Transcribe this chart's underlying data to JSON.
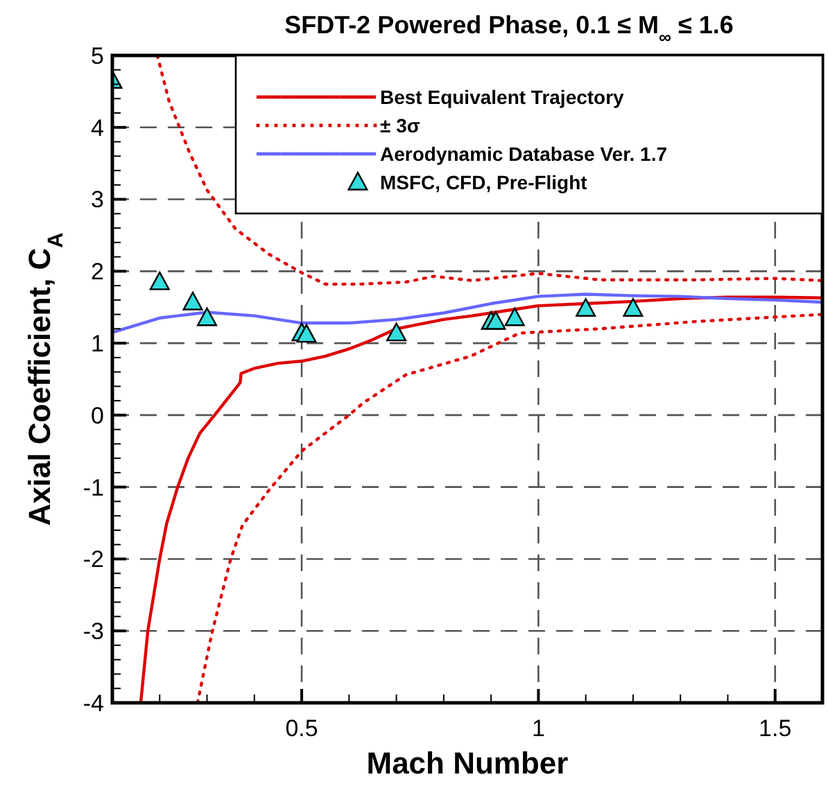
{
  "chart_data": {
    "type": "line",
    "title": "SFDT-2 Powered Phase, 0.1 ≤ M$_{∞}$ ≤ 1.6",
    "xlabel": "Mach Number",
    "ylabel": "Axial Coefficient, C$_{A}$",
    "xlim": [
      0.1,
      1.6
    ],
    "ylim": [
      -4,
      5
    ],
    "xticks": [
      {
        "value": 0.2,
        "label": null
      },
      {
        "value": 0.3,
        "label": null
      },
      {
        "value": 0.4,
        "label": null
      },
      0.5,
      {
        "value": 0.6,
        "label": null
      },
      {
        "value": 0.7,
        "label": null
      },
      {
        "value": 0.8,
        "label": null
      },
      {
        "value": 0.9,
        "label": null
      },
      1,
      {
        "value": 1.1,
        "label": null
      },
      {
        "value": 1.2,
        "label": null
      },
      {
        "value": 1.3,
        "label": null
      },
      {
        "value": 1.4,
        "label": null
      },
      1.5
    ],
    "yticks": [
      -4,
      {
        "value": -3.8,
        "label": null
      },
      {
        "value": -3.6,
        "label": null
      },
      {
        "value": -3.4,
        "label": null
      },
      {
        "value": -3.2,
        "label": null
      },
      -3,
      {
        "value": -2.8,
        "label": null
      },
      {
        "value": -2.6,
        "label": null
      },
      {
        "value": -2.4,
        "label": null
      },
      {
        "value": -2.2,
        "label": null
      },
      -2,
      {
        "value": -1.8,
        "label": null
      },
      {
        "value": -1.6,
        "label": null
      },
      {
        "value": -1.4,
        "label": null
      },
      {
        "value": -1.2,
        "label": null
      },
      -1,
      {
        "value": -0.8,
        "label": null
      },
      {
        "value": -0.6,
        "label": null
      },
      {
        "value": -0.4,
        "label": null
      },
      {
        "value": -0.2,
        "label": null
      },
      0,
      {
        "value": 0.2,
        "label": null
      },
      {
        "value": 0.4,
        "label": null
      },
      {
        "value": 0.6,
        "label": null
      },
      {
        "value": 0.8,
        "label": null
      },
      1,
      {
        "value": 1.2,
        "label": null
      },
      {
        "value": 1.4,
        "label": null
      },
      {
        "value": 1.6,
        "label": null
      },
      {
        "value": 1.8,
        "label": null
      },
      2,
      {
        "value": 2.2,
        "label": null
      },
      {
        "value": 2.4,
        "label": null
      },
      {
        "value": 2.6,
        "label": null
      },
      {
        "value": 2.8,
        "label": null
      },
      3,
      {
        "value": 3.2,
        "label": null
      },
      {
        "value": 3.4,
        "label": null
      },
      {
        "value": 3.6,
        "label": null
      },
      {
        "value": 3.8,
        "label": null
      },
      4,
      {
        "value": 4.2,
        "label": null
      },
      {
        "value": 4.4,
        "label": null
      },
      {
        "value": 4.6,
        "label": null
      },
      {
        "value": 4.8,
        "label": null
      },
      5
    ],
    "grid": true,
    "legend": "top",
    "line_style": "solid",
    "series": [
      {
        "name": "Best Equivalent Trajectory",
        "color": "#dd0000",
        "x": [
          0.16,
          0.175,
          0.2,
          0.215,
          0.238,
          0.26,
          0.285,
          0.316,
          0.34,
          0.37,
          0.372,
          0.4,
          0.45,
          0.5,
          0.55,
          0.6,
          0.65,
          0.7,
          0.8,
          0.86,
          0.9,
          1.0,
          1.1,
          1.2,
          1.3,
          1.4,
          1.5,
          1.6
        ],
        "values": [
          -4,
          -3,
          -2,
          -1.5,
          -1,
          -0.6,
          -0.25,
          0,
          0.2,
          0.45,
          0.58,
          0.65,
          0.72,
          0.75,
          0.82,
          0.92,
          1.05,
          1.2,
          1.33,
          1.38,
          1.42,
          1.52,
          1.55,
          1.58,
          1.62,
          1.64,
          1.64,
          1.63
        ]
      },
      {
        "name": "± 3σ",
        "line_style": "dotted",
        "color": "#dd0000",
        "x": [
          0.195,
          0.22,
          0.263,
          0.3,
          0.36,
          0.43,
          0.5,
          0.55,
          0.62,
          0.72,
          0.78,
          0.86,
          1.0,
          1.13,
          1.33,
          1.5,
          1.6
        ],
        "values": [
          5,
          4.36,
          3.65,
          3.13,
          2.59,
          2.24,
          1.98,
          1.82,
          1.82,
          1.85,
          1.93,
          1.87,
          1.97,
          1.88,
          1.88,
          1.9,
          1.87
        ]
      },
      {
        "line_style": "dotted",
        "color": "#dd0000",
        "x": [
          0.28,
          0.31,
          0.35,
          0.375,
          0.43,
          0.5,
          0.6,
          0.63,
          0.72,
          0.857,
          0.96,
          1.13,
          1.33,
          1.6
        ],
        "values": [
          -4,
          -3.04,
          -2,
          -1.53,
          -1.05,
          -0.5,
          0,
          0.17,
          0.56,
          0.82,
          1.14,
          1.2,
          1.3,
          1.4
        ]
      },
      {
        "name": "Aerodynamic Database Ver. 1.7",
        "color": "#6666ff",
        "x": [
          0.1,
          0.2,
          0.3,
          0.4,
          0.5,
          0.6,
          0.7,
          0.8,
          0.9,
          1.0,
          1.1,
          1.2,
          1.3,
          1.4,
          1.5,
          1.6
        ],
        "values": [
          1.15,
          1.35,
          1.43,
          1.38,
          1.28,
          1.28,
          1.33,
          1.42,
          1.55,
          1.65,
          1.68,
          1.66,
          1.65,
          1.62,
          1.6,
          1.57
        ]
      },
      {
        "name": "MSFC, CFD, Pre-Flight",
        "type": "scatter",
        "marker": "triangle",
        "color": "#33dddd",
        "x": [
          0.1,
          0.2,
          0.27,
          0.3,
          0.5,
          0.51,
          0.7,
          0.9,
          0.91,
          0.95,
          1.1,
          1.2
        ],
        "values": [
          4.65,
          1.85,
          1.57,
          1.35,
          1.14,
          1.12,
          1.14,
          1.3,
          1.3,
          1.35,
          1.48,
          1.48
        ]
      }
    ]
  }
}
